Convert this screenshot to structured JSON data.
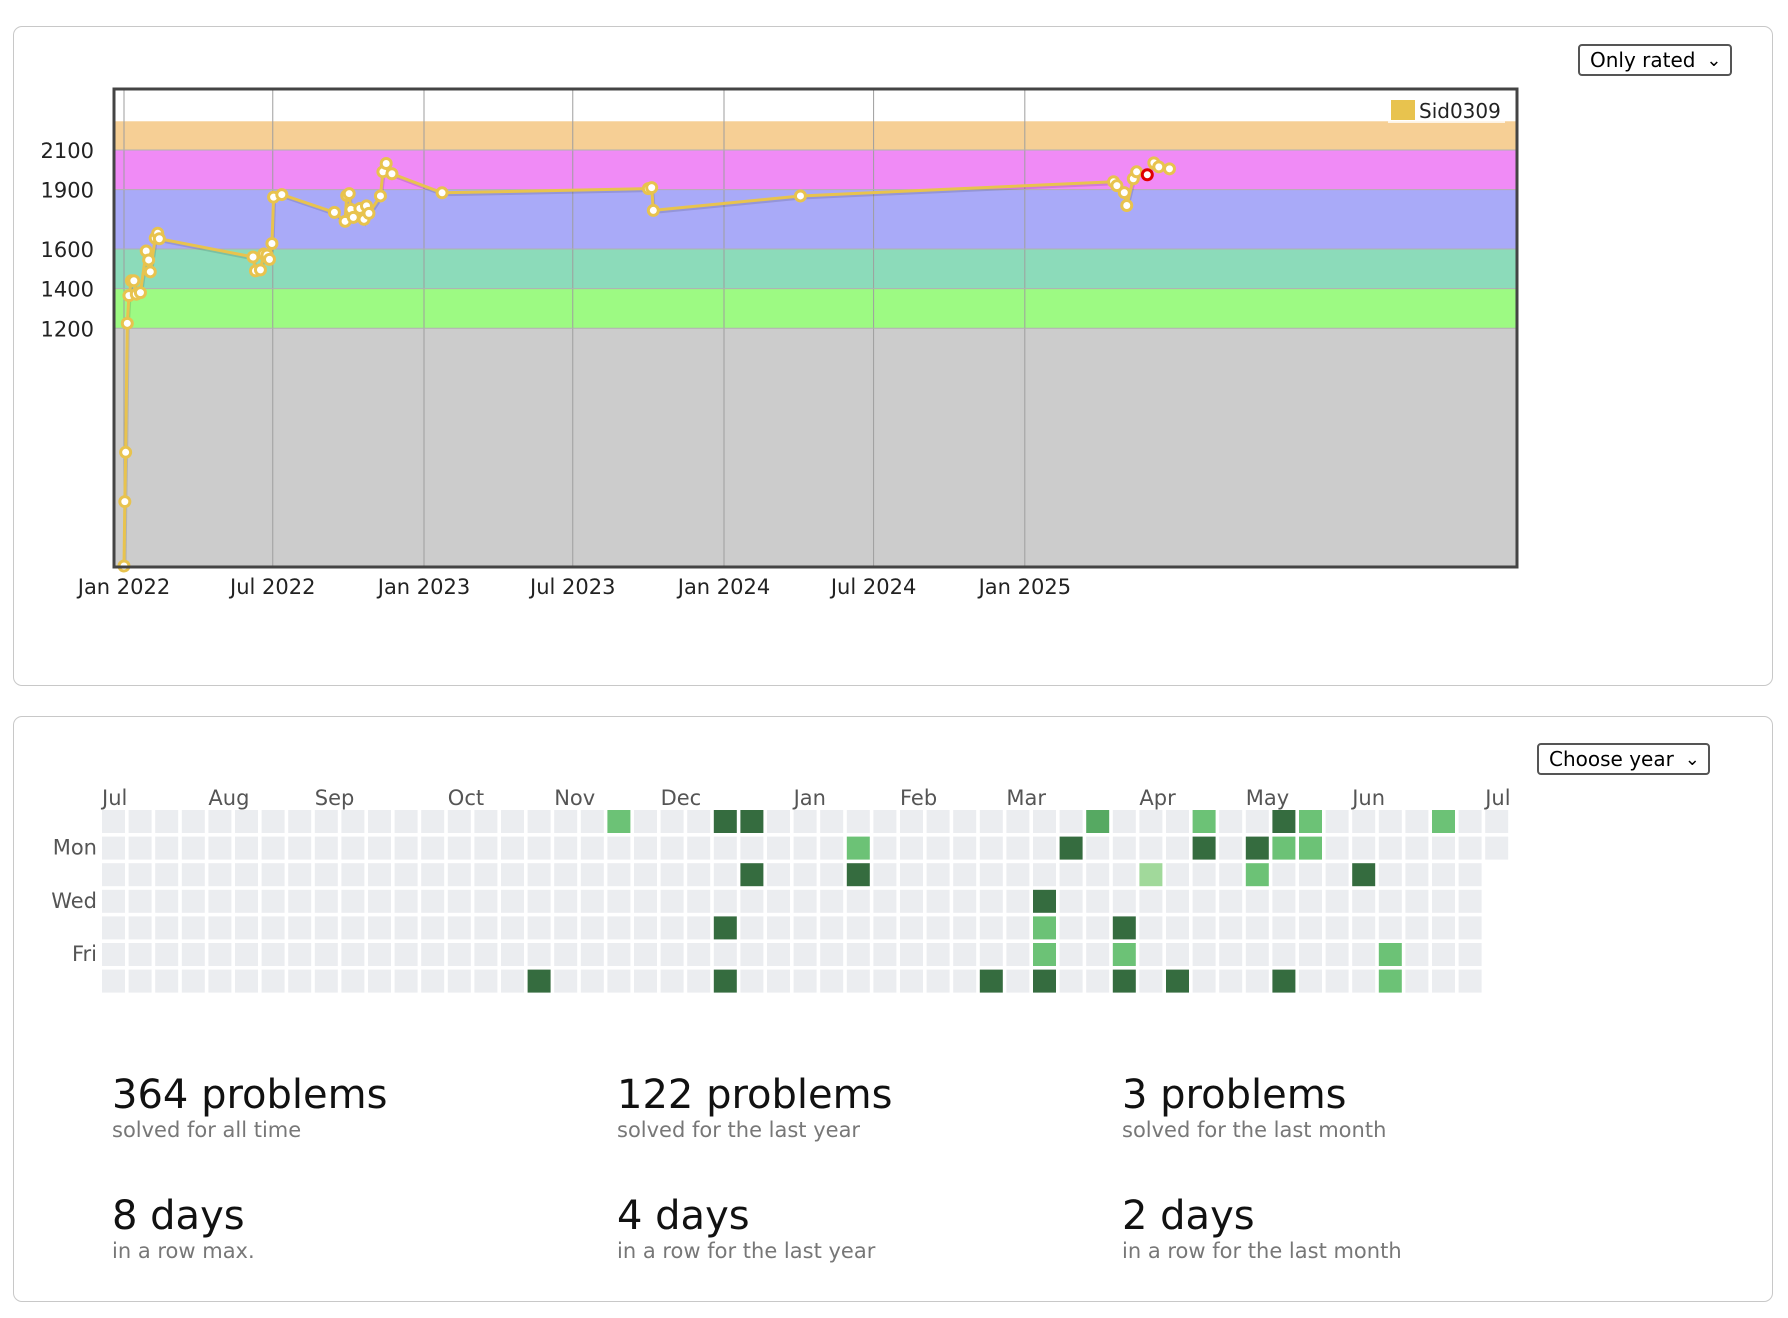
{
  "rating_panel": {
    "filter": {
      "selected": "Only rated"
    },
    "chart_data": {
      "type": "line",
      "legend": [
        "Sid0309"
      ],
      "legend_position": "top-right",
      "series": [
        {
          "name": "Sid0309",
          "color": "#e8c34e",
          "points": [
            [
              "2022-01-01",
              0
            ],
            [
              "2022-01-02",
              325
            ],
            [
              "2022-01-03",
              574
            ],
            [
              "2022-01-05",
              1225
            ],
            [
              "2022-01-07",
              1365
            ],
            [
              "2022-01-10",
              1440
            ],
            [
              "2022-01-13",
              1440
            ],
            [
              "2022-01-16",
              1372
            ],
            [
              "2022-01-21",
              1380
            ],
            [
              "2022-01-28",
              1590
            ],
            [
              "2022-01-31",
              1545
            ],
            [
              "2022-02-02",
              1485
            ],
            [
              "2022-02-08",
              1655
            ],
            [
              "2022-02-11",
              1680
            ],
            [
              "2022-02-13",
              1652
            ],
            [
              "2022-06-07",
              1560
            ],
            [
              "2022-06-10",
              1490
            ],
            [
              "2022-06-16",
              1495
            ],
            [
              "2022-06-20",
              1575
            ],
            [
              "2022-06-24",
              1570
            ],
            [
              "2022-06-27",
              1548
            ],
            [
              "2022-06-30",
              1628
            ],
            [
              "2022-07-02",
              1862
            ],
            [
              "2022-07-12",
              1875
            ],
            [
              "2022-09-14",
              1785
            ],
            [
              "2022-09-27",
              1740
            ],
            [
              "2022-09-29",
              1870
            ],
            [
              "2022-10-02",
              1880
            ],
            [
              "2022-10-04",
              1800
            ],
            [
              "2022-10-07",
              1760
            ],
            [
              "2022-10-15",
              1805
            ],
            [
              "2022-10-20",
              1750
            ],
            [
              "2022-10-23",
              1818
            ],
            [
              "2022-10-26",
              1780
            ],
            [
              "2022-11-09",
              1868
            ],
            [
              "2022-11-12",
              1990
            ],
            [
              "2022-11-16",
              2032
            ],
            [
              "2022-11-23",
              1980
            ],
            [
              "2023-01-23",
              1884
            ],
            [
              "2023-10-01",
              1905
            ],
            [
              "2023-10-05",
              1910
            ],
            [
              "2023-10-07",
              1795
            ],
            [
              "2024-04-03",
              1868
            ],
            [
              "2025-04-19",
              1940
            ],
            [
              "2025-04-23",
              1920
            ],
            [
              "2025-05-02",
              1885
            ],
            [
              "2025-05-05",
              1820
            ],
            [
              "2025-05-13",
              1955
            ],
            [
              "2025-05-17",
              1990
            ],
            [
              "2025-05-30",
              1975
            ],
            [
              "2025-06-07",
              2035
            ],
            [
              "2025-06-13",
              2015
            ],
            [
              "2025-06-26",
              2005
            ]
          ]
        }
      ],
      "x_ticks": [
        "Jan 2022",
        "Jul 2022",
        "Jan 2023",
        "Jul 2023",
        "Jan 2024",
        "Jul 2024",
        "Jan 2025"
      ],
      "y_ticks": [
        1200,
        1400,
        1600,
        1900,
        2100
      ],
      "ylim": [
        0,
        2245
      ],
      "grid": true,
      "rating_bands": [
        {
          "from": 0,
          "to": 1200,
          "color": "#cccccc"
        },
        {
          "from": 1200,
          "to": 1400,
          "color": "#9dfa83"
        },
        {
          "from": 1400,
          "to": 1600,
          "color": "#8cdbba"
        },
        {
          "from": 1600,
          "to": 1900,
          "color": "#a9aaf8"
        },
        {
          "from": 1900,
          "to": 2100,
          "color": "#f08bf6"
        },
        {
          "from": 2100,
          "to": 2245,
          "color": "#f6cf95"
        }
      ]
    }
  },
  "activity_panel": {
    "year_select": {
      "selected": "Choose year"
    },
    "months": [
      "Jul",
      "Aug",
      "Sep",
      "Oct",
      "Nov",
      "Dec",
      "Jan",
      "Feb",
      "Mar",
      "Apr",
      "May",
      "Jun",
      "Jul"
    ],
    "weekdays": [
      "Mon",
      "Wed",
      "Fri"
    ],
    "heatmap": {
      "weeks": 53,
      "days_per_week": 7,
      "levels": [
        "#ebedf0",
        "#a1d99b",
        "#6cc276",
        "#56a962",
        "#356c3f"
      ],
      "active_cells": [
        [
          19,
          0,
          2
        ],
        [
          23,
          0,
          4
        ],
        [
          24,
          0,
          4
        ],
        [
          37,
          0,
          3
        ],
        [
          41,
          0,
          2
        ],
        [
          44,
          0,
          4
        ],
        [
          45,
          0,
          2
        ],
        [
          50,
          0,
          2
        ],
        [
          28,
          1,
          2
        ],
        [
          36,
          1,
          4
        ],
        [
          41,
          1,
          4
        ],
        [
          43,
          1,
          4
        ],
        [
          44,
          1,
          2
        ],
        [
          45,
          1,
          2
        ],
        [
          24,
          2,
          4
        ],
        [
          28,
          2,
          4
        ],
        [
          39,
          2,
          1
        ],
        [
          43,
          2,
          2
        ],
        [
          47,
          2,
          4
        ],
        [
          35,
          3,
          4
        ],
        [
          23,
          4,
          4
        ],
        [
          35,
          4,
          2
        ],
        [
          38,
          4,
          4
        ],
        [
          35,
          5,
          2
        ],
        [
          38,
          5,
          2
        ],
        [
          48,
          5,
          2
        ],
        [
          16,
          6,
          4
        ],
        [
          23,
          6,
          4
        ],
        [
          33,
          6,
          4
        ],
        [
          35,
          6,
          4
        ],
        [
          38,
          6,
          4
        ],
        [
          40,
          6,
          4
        ],
        [
          44,
          6,
          4
        ],
        [
          48,
          6,
          2
        ]
      ]
    },
    "stats": [
      {
        "value": "364 problems",
        "label": "solved for all time"
      },
      {
        "value": "122 problems",
        "label": "solved for the last year"
      },
      {
        "value": "3 problems",
        "label": "solved for the last month"
      },
      {
        "value": "8 days",
        "label": "in a row max."
      },
      {
        "value": "4 days",
        "label": "in a row for the last year"
      },
      {
        "value": "2 days",
        "label": "in a row for the last month"
      }
    ]
  }
}
